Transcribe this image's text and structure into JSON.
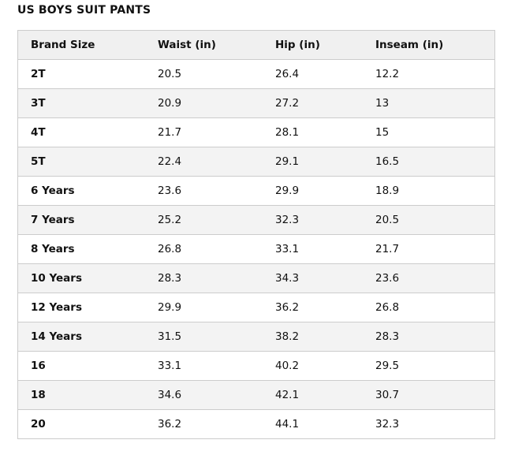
{
  "title": "US BOYS SUIT PANTS",
  "table": {
    "header": [
      "Brand Size",
      "Waist (in)",
      "Hip (in)",
      "Inseam (in)"
    ],
    "rows": [
      [
        "2T",
        "20.5",
        "26.4",
        "12.2"
      ],
      [
        "3T",
        "20.9",
        "27.2",
        "13"
      ],
      [
        "4T",
        "21.7",
        "28.1",
        "15"
      ],
      [
        "5T",
        "22.4",
        "29.1",
        "16.5"
      ],
      [
        "6 Years",
        "23.6",
        "29.9",
        "18.9"
      ],
      [
        "7 Years",
        "25.2",
        "32.3",
        "20.5"
      ],
      [
        "8 Years",
        "26.8",
        "33.1",
        "21.7"
      ],
      [
        "10 Years",
        "28.3",
        "34.3",
        "23.6"
      ],
      [
        "12 Years",
        "29.9",
        "36.2",
        "26.8"
      ],
      [
        "14 Years",
        "31.5",
        "38.2",
        "28.3"
      ],
      [
        "16",
        "33.1",
        "40.2",
        "29.5"
      ],
      [
        "18",
        "34.6",
        "42.1",
        "30.7"
      ],
      [
        "20",
        "36.2",
        "44.1",
        "32.3"
      ]
    ]
  }
}
